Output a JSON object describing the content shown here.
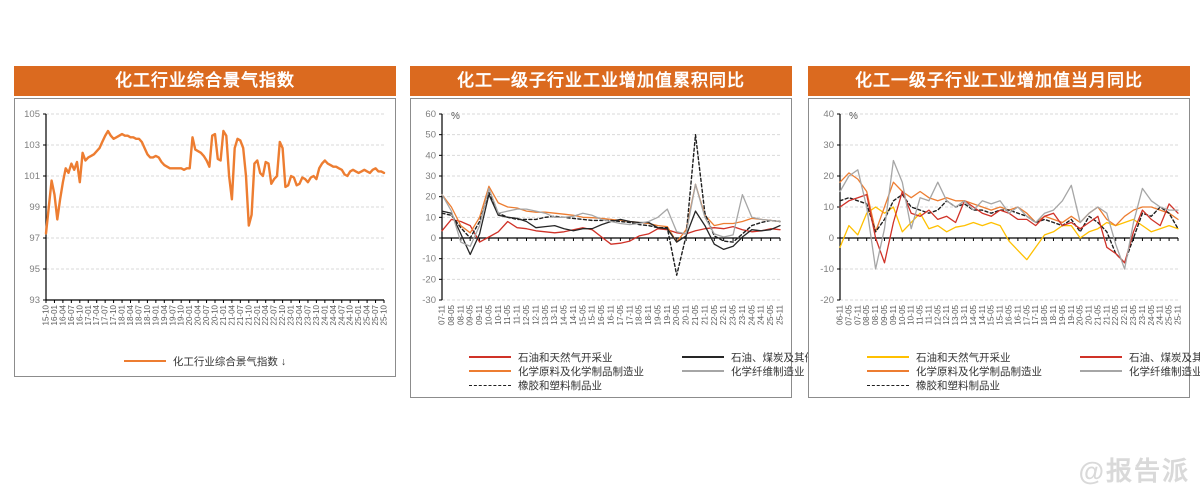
{
  "page": {
    "watermark": "@报告派",
    "colors": {
      "accent": "#DB6A1F",
      "grid": "#D9D9D9",
      "axis": "#000000",
      "tick_label": "#7F7F7F",
      "x_tick_label": "#595959",
      "panel_border": "#8C8C8C"
    }
  },
  "chart_data": [
    {
      "type": "line",
      "title": "化工行业综合景气指数",
      "unit_label": "",
      "ylim": [
        93,
        105
      ],
      "ystep": 2,
      "grid": true,
      "legend_position": "bottom-center",
      "legend_columns": 1,
      "points_per_tick": 3,
      "x_tick_labels": [
        "15-10",
        "16-01",
        "16-04",
        "16-07",
        "16-10",
        "17-01",
        "17-04",
        "17-07",
        "17-10",
        "18-01",
        "18-04",
        "18-07",
        "18-10",
        "19-01",
        "19-04",
        "19-07",
        "19-10",
        "20-01",
        "20-04",
        "20-07",
        "20-10",
        "21-01",
        "21-04",
        "21-07",
        "21-10",
        "22-01",
        "22-04",
        "22-07",
        "22-10",
        "23-01",
        "23-04",
        "23-07",
        "23-10",
        "24-01",
        "24-04",
        "24-07",
        "24-10",
        "25-01",
        "25-04",
        "25-07",
        "25-10"
      ],
      "series": [
        {
          "name": "化工行业综合景气指数",
          "legend_label": "化工行业综合景气指数 ↓",
          "color": "#ED7D31",
          "dash": "solid",
          "width": 2.4,
          "values": [
            97.3,
            99.0,
            100.7,
            99.8,
            98.2,
            99.5,
            100.6,
            101.5,
            101.2,
            101.8,
            101.4,
            101.9,
            100.6,
            102.5,
            102.0,
            102.2,
            102.3,
            102.4,
            102.6,
            102.8,
            103.2,
            103.6,
            103.9,
            103.6,
            103.4,
            103.5,
            103.6,
            103.7,
            103.6,
            103.6,
            103.5,
            103.5,
            103.4,
            103.4,
            103.2,
            102.8,
            102.4,
            102.2,
            102.2,
            102.3,
            102.2,
            101.9,
            101.7,
            101.6,
            101.5,
            101.5,
            101.5,
            101.5,
            101.5,
            101.4,
            101.5,
            101.5,
            103.5,
            102.7,
            102.6,
            102.5,
            102.3,
            102.0,
            101.6,
            103.6,
            103.7,
            102.1,
            102.0,
            103.9,
            103.6,
            101.0,
            99.5,
            102.8,
            103.4,
            103.3,
            102.8,
            101.0,
            97.8,
            98.5,
            101.8,
            102.0,
            101.2,
            101.0,
            101.9,
            101.8,
            100.5,
            100.8,
            101.0,
            103.2,
            102.8,
            100.3,
            100.4,
            101.0,
            100.9,
            100.4,
            100.5,
            100.9,
            100.8,
            100.6,
            100.9,
            101.0,
            100.8,
            101.5,
            101.8,
            102.0,
            101.8,
            101.7,
            101.6,
            101.6,
            101.5,
            101.4,
            101.1,
            101.0,
            101.3,
            101.4,
            101.3,
            101.2,
            101.3,
            101.4,
            101.3,
            101.2,
            101.4,
            101.5,
            101.3,
            101.3,
            101.2
          ]
        }
      ]
    },
    {
      "type": "line",
      "title": "化工一级子行业工业增加值累积同比",
      "unit_label": "%",
      "ylim": [
        -30,
        60
      ],
      "ystep": 10,
      "grid": true,
      "legend_position": "bottom",
      "legend_columns": 2,
      "points_per_tick": 1,
      "x_tick_labels": [
        "07-11",
        "08-05",
        "08-11",
        "09-05",
        "09-11",
        "10-05",
        "10-11",
        "11-05",
        "11-11",
        "12-05",
        "12-11",
        "13-05",
        "13-11",
        "14-05",
        "14-11",
        "15-05",
        "15-11",
        "16-05",
        "16-11",
        "17-05",
        "17-11",
        "18-05",
        "18-11",
        "19-05",
        "19-11",
        "20-05",
        "20-11",
        "21-05",
        "21-11",
        "22-05",
        "22-11",
        "23-05",
        "23-11",
        "24-05",
        "24-11",
        "25-05",
        "25-11"
      ],
      "series": [
        {
          "name": "石油和天然气开采业",
          "legend_label": "石油和天然气开采业",
          "color": "#D03228",
          "dash": "solid",
          "width": 1.3,
          "values": [
            3.5,
            9,
            8,
            6,
            -2,
            0.5,
            3,
            8,
            5,
            4.5,
            3.5,
            3,
            2.5,
            3,
            4,
            5,
            4,
            0.5,
            -3,
            -2.5,
            -1.5,
            1,
            2,
            4.5,
            4,
            2.5,
            2,
            3.5,
            4.5,
            5,
            4.5,
            5.5,
            4,
            3,
            3.5,
            4.5,
            4
          ]
        },
        {
          "name": "化学原料及化学制品制造业",
          "legend_label": "化学原料及化学制品制造业",
          "color": "#ED7D31",
          "dash": "solid",
          "width": 1.3,
          "values": [
            21,
            15,
            6,
            2.5,
            10,
            25,
            17,
            15,
            14.5,
            13,
            12.5,
            12.5,
            12,
            11.5,
            11,
            10,
            9.8,
            9.5,
            9,
            8.5,
            8,
            7.5,
            7,
            6,
            5.5,
            -2,
            4,
            26,
            11,
            6,
            7,
            7,
            8,
            9.5,
            9,
            8.5,
            8
          ]
        },
        {
          "name": "橡胶和塑料制品业",
          "legend_label": "橡胶和塑料制品业",
          "color": "#1F1F1F",
          "dash": "dashed",
          "width": 1.4,
          "values": [
            12,
            11,
            5,
            0,
            8,
            22,
            12,
            10,
            9,
            9,
            9,
            10,
            10.5,
            10,
            9.5,
            9,
            8.5,
            8.5,
            8.5,
            8,
            7.5,
            6.5,
            6,
            5,
            5,
            -18,
            1,
            50,
            12,
            1,
            -1.5,
            -2,
            2,
            6,
            7.5,
            8.5,
            8
          ]
        },
        {
          "name": "石油、煤炭及其他燃料加工业",
          "legend_label": "石油、煤炭及其他燃料加工业",
          "color": "#262626",
          "dash": "solid",
          "width": 1.3,
          "values": [
            13,
            12,
            2,
            -8,
            2,
            21,
            11,
            10,
            9.5,
            8,
            5,
            5.5,
            6,
            4.5,
            3.5,
            4.5,
            4.5,
            6.5,
            8,
            9,
            8,
            7.5,
            7.5,
            5,
            4.5,
            -2,
            1,
            13,
            6,
            -3,
            -5.5,
            -4,
            0.5,
            4,
            3.5,
            4,
            6
          ]
        },
        {
          "name": "化学纤维制造业",
          "legend_label": "化学纤维制造业",
          "color": "#A6A6A6",
          "dash": "solid",
          "width": 1.3,
          "values": [
            21,
            13,
            -2,
            -4,
            6,
            24,
            12,
            13,
            14,
            14,
            13,
            12,
            10,
            10,
            10.5,
            12,
            11,
            9,
            8,
            7,
            6.5,
            7,
            8,
            10,
            14,
            3,
            2,
            26,
            10,
            2,
            0.5,
            1.5,
            21,
            10,
            9,
            8.5,
            8
          ]
        }
      ]
    },
    {
      "type": "line",
      "title": "化工一级子行业工业增加值当月同比",
      "unit_label": "%",
      "ylim": [
        -20,
        40
      ],
      "ystep": 10,
      "grid": true,
      "legend_position": "bottom",
      "legend_columns": 2,
      "points_per_tick": 1,
      "x_tick_labels": [
        "06-11",
        "07-05",
        "07-11",
        "08-05",
        "08-11",
        "09-05",
        "09-11",
        "10-05",
        "10-11",
        "11-05",
        "11-11",
        "12-05",
        "12-11",
        "13-05",
        "13-11",
        "14-05",
        "14-11",
        "15-05",
        "15-11",
        "16-05",
        "16-11",
        "17-05",
        "17-11",
        "18-05",
        "18-11",
        "19-05",
        "19-11",
        "20-05",
        "20-11",
        "21-05",
        "21-11",
        "22-05",
        "22-11",
        "23-05",
        "23-11",
        "24-05",
        "24-11",
        "25-05",
        "25-11"
      ],
      "series": [
        {
          "name": "石油和天然气开采业",
          "legend_label": "石油和天然气开采业",
          "color": "#FFC000",
          "dash": "solid",
          "width": 1.3,
          "values": [
            -3,
            4,
            1,
            8,
            10,
            8,
            10,
            2,
            5,
            8,
            3,
            4,
            2,
            3.5,
            4,
            5,
            4,
            5,
            4,
            -1,
            -4,
            -7,
            -3,
            1,
            2,
            4,
            4,
            0,
            2,
            3,
            5,
            4,
            5,
            6,
            4,
            2,
            3,
            4,
            3
          ]
        },
        {
          "name": "化学原料及化学制品制造业",
          "legend_label": "化学原料及化学制品制造业",
          "color": "#ED7D31",
          "dash": "solid",
          "width": 1.3,
          "values": [
            18,
            21,
            19,
            15,
            2,
            10,
            18,
            15,
            13,
            15,
            13,
            12,
            13,
            12,
            12,
            11,
            10,
            9,
            10,
            9,
            10,
            8,
            5,
            7,
            6,
            5,
            7,
            5,
            8,
            10,
            6,
            4,
            7,
            9,
            10,
            10,
            9,
            8,
            6
          ]
        },
        {
          "name": "橡胶和塑料制品业",
          "legend_label": "橡胶和塑料制品业",
          "color": "#1F1F1F",
          "dash": "dashed",
          "width": 1.4,
          "values": [
            12,
            13,
            12,
            11,
            2,
            6,
            12,
            14,
            10,
            9,
            8,
            9,
            12,
            10,
            11,
            9,
            9,
            8,
            9,
            9,
            8,
            7,
            5,
            6,
            5,
            4,
            6,
            2,
            7,
            5,
            2,
            -5,
            -8,
            0,
            8,
            7,
            10,
            8,
            3
          ]
        },
        {
          "name": "石油、煤炭及其他燃料加工业",
          "legend_label": "石油、煤炭及其他燃料加工业",
          "color": "#D03228",
          "dash": "solid",
          "width": 1.3,
          "values": [
            10,
            12,
            13,
            14,
            0,
            -8,
            5,
            15,
            8,
            7,
            9,
            6,
            7,
            5,
            12,
            10,
            8,
            7,
            9,
            8,
            6,
            6,
            4,
            7,
            8,
            4,
            5,
            3,
            5,
            7,
            -3,
            -5,
            -8,
            2,
            9,
            6,
            4,
            11,
            8
          ]
        },
        {
          "name": "化学纤维制造业",
          "legend_label": "化学纤维制造业",
          "color": "#A6A6A6",
          "dash": "solid",
          "width": 1.3,
          "values": [
            15,
            20,
            22,
            10,
            -10,
            3,
            25,
            18,
            3,
            13,
            12,
            18,
            12,
            10,
            12,
            9,
            12,
            11,
            12,
            8,
            10,
            7,
            5,
            8,
            9,
            12,
            17,
            5,
            8,
            10,
            8,
            -2,
            -10,
            5,
            16,
            12,
            10,
            9,
            9
          ]
        }
      ]
    }
  ]
}
